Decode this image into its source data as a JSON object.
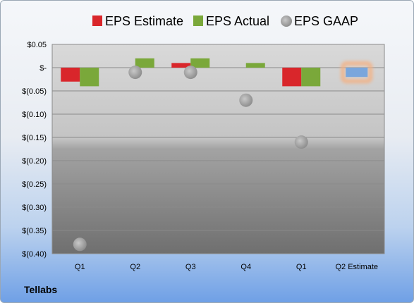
{
  "company": "Tellabs",
  "chart_data": {
    "type": "bar",
    "categories": [
      "Q1",
      "Q2",
      "Q3",
      "Q4",
      "Q1",
      "Q2 Estimate"
    ],
    "series": [
      {
        "name": "EPS Estimate",
        "color": "#d9262b",
        "values": [
          -0.03,
          null,
          0.01,
          null,
          -0.04,
          null
        ]
      },
      {
        "name": "EPS Actual",
        "color": "#7aa83a",
        "values": [
          -0.04,
          0.02,
          0.02,
          0.01,
          -0.04,
          null
        ]
      },
      {
        "name": "EPS GAAP",
        "color": "#9e9e9e",
        "marker": "circle",
        "values": [
          -0.38,
          -0.01,
          -0.01,
          -0.07,
          -0.16,
          null
        ]
      }
    ],
    "highlight": {
      "category": "Q2 Estimate",
      "value": -0.02,
      "fill": "#7aa6dc",
      "glow": "#f4b183"
    },
    "yticks": [
      0.05,
      0,
      -0.05,
      -0.1,
      -0.15,
      -0.2,
      -0.25,
      -0.3,
      -0.35,
      -0.4
    ],
    "ytick_labels": [
      "$0.05",
      "$-",
      "$(0.05)",
      "$(0.10)",
      "$(0.15)",
      "$(0.20)",
      "$(0.25)",
      "$(0.30)",
      "$(0.35)",
      "$(0.40)"
    ],
    "ylim": [
      -0.4,
      0.05
    ],
    "grid": true,
    "legend": "top"
  }
}
